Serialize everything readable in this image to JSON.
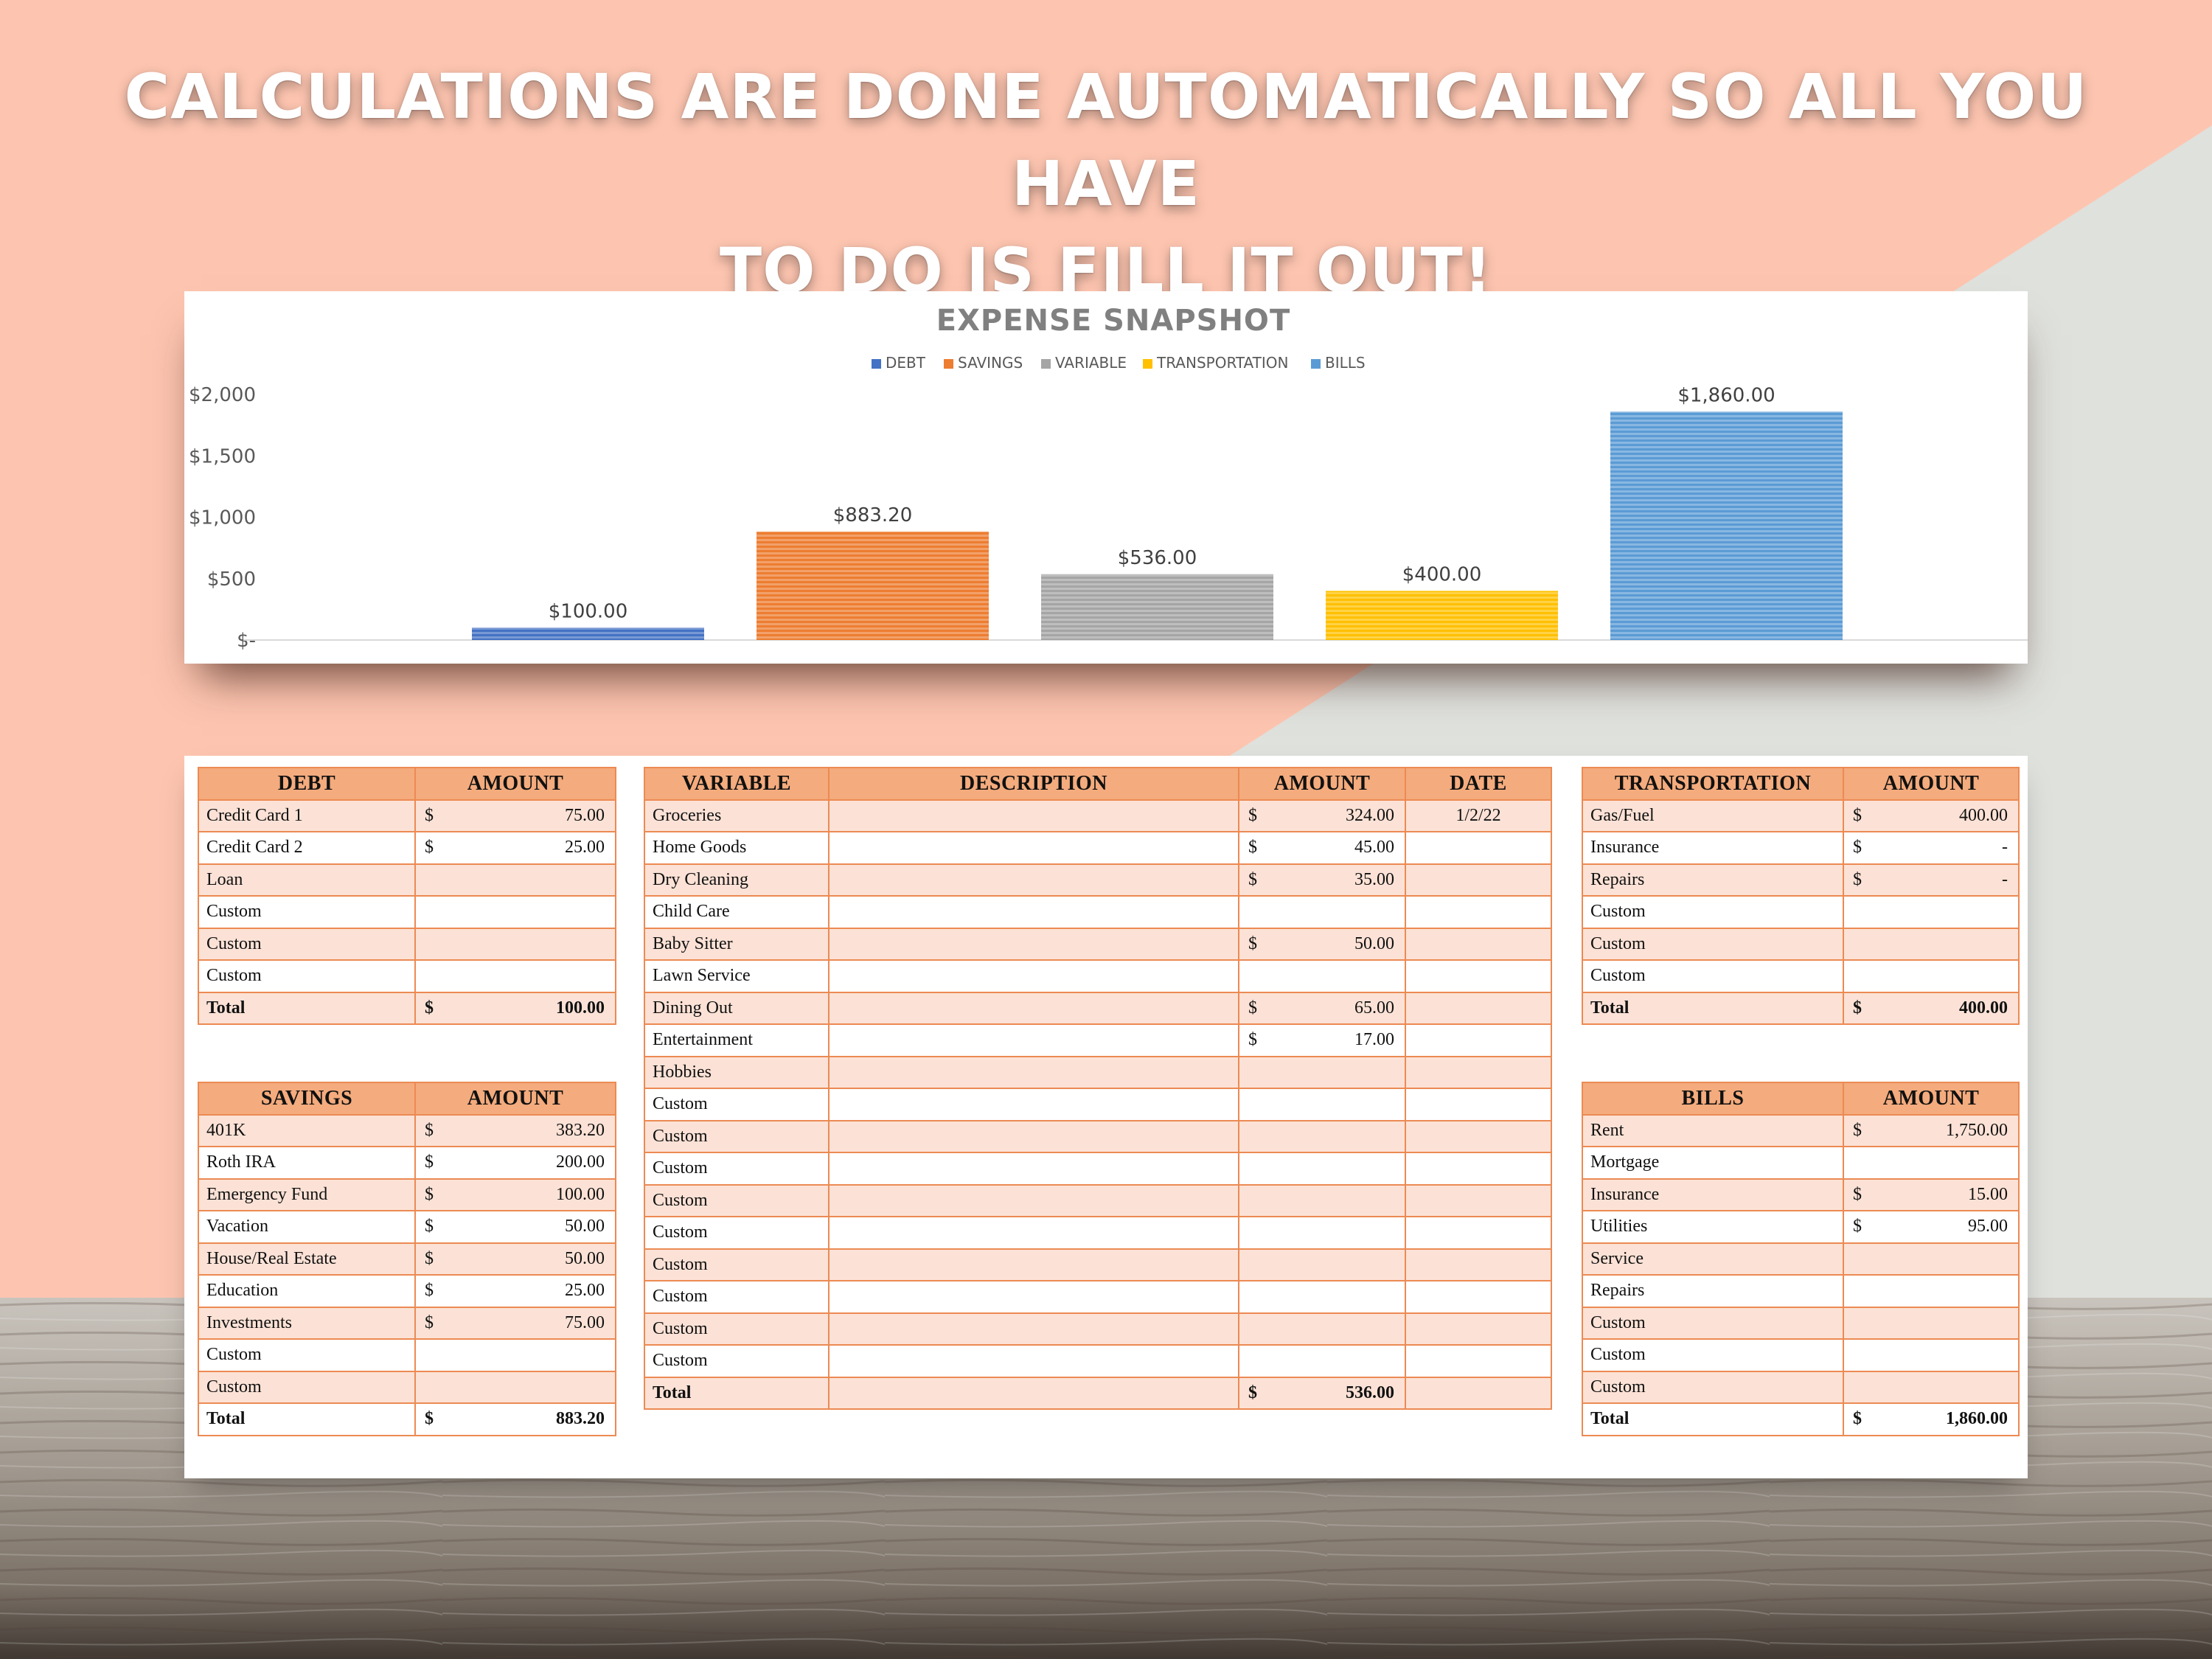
{
  "headline": {
    "line1": "CALCULATIONS ARE DONE AUTOMATICALLY SO ALL YOU HAVE",
    "line2": "TO DO IS FILL IT OUT!"
  },
  "colors": {
    "peach": "#fdc5b0",
    "gray_bg": "#dfe1dd",
    "debt": "#4472c4",
    "savings": "#ed7d31",
    "variable": "#a5a5a5",
    "transportation": "#ffc000",
    "bills": "#5b9bd5",
    "table_header": "#f4ab7d",
    "table_band": "#fce2d6",
    "table_border": "#ec8a53"
  },
  "chart_data": {
    "type": "bar",
    "title": "EXPENSE SNAPSHOT",
    "categories": [
      "DEBT",
      "SAVINGS",
      "VARIABLE",
      "TRANSPORTATION",
      "BILLS"
    ],
    "values": [
      100.0,
      883.2,
      536.0,
      400.0,
      1860.0
    ],
    "data_labels": [
      "$100.00",
      "$883.20",
      "$536.00",
      "$400.00",
      "$1,860.00"
    ],
    "legend": [
      "DEBT",
      "SAVINGS",
      "VARIABLE",
      "TRANSPORTATION",
      "BILLS"
    ],
    "legend_position": "top",
    "ylim": [
      0,
      2000
    ],
    "yticks": [
      0,
      500,
      1000,
      1500,
      2000
    ],
    "ytick_labels": [
      "$-",
      "$500",
      "$1,000",
      "$1,500",
      "$2,000"
    ],
    "xlabel": "",
    "ylabel": ""
  },
  "tables": {
    "debt": {
      "headers": [
        "DEBT",
        "AMOUNT"
      ],
      "rows": [
        [
          "Credit Card 1",
          "$",
          "75.00"
        ],
        [
          "Credit Card 2",
          "$",
          "25.00"
        ],
        [
          "Loan",
          "",
          ""
        ],
        [
          "Custom",
          "",
          ""
        ],
        [
          "Custom",
          "",
          ""
        ],
        [
          "Custom",
          "",
          ""
        ],
        [
          "Total",
          "$",
          "100.00"
        ]
      ]
    },
    "savings": {
      "headers": [
        "SAVINGS",
        "AMOUNT"
      ],
      "rows": [
        [
          "401K",
          "$",
          "383.20"
        ],
        [
          "Roth IRA",
          "$",
          "200.00"
        ],
        [
          "Emergency Fund",
          "$",
          "100.00"
        ],
        [
          "Vacation",
          "$",
          "50.00"
        ],
        [
          "House/Real Estate",
          "$",
          "50.00"
        ],
        [
          "Education",
          "$",
          "25.00"
        ],
        [
          "Investments",
          "$",
          "75.00"
        ],
        [
          "Custom",
          "",
          ""
        ],
        [
          "Custom",
          "",
          ""
        ],
        [
          "Total",
          "$",
          "883.20"
        ]
      ]
    },
    "variable": {
      "headers": [
        "VARIABLE",
        "DESCRIPTION",
        "AMOUNT",
        "DATE"
      ],
      "rows": [
        [
          "Groceries",
          "",
          "$",
          "324.00",
          "1/2/22"
        ],
        [
          "Home Goods",
          "",
          "$",
          "45.00",
          ""
        ],
        [
          "Dry Cleaning",
          "",
          "$",
          "35.00",
          ""
        ],
        [
          "Child Care",
          "",
          "",
          "",
          ""
        ],
        [
          "Baby Sitter",
          "",
          "$",
          "50.00",
          ""
        ],
        [
          "Lawn Service",
          "",
          "",
          "",
          ""
        ],
        [
          "Dining Out",
          "",
          "$",
          "65.00",
          ""
        ],
        [
          "Entertainment",
          "",
          "$",
          "17.00",
          ""
        ],
        [
          "Hobbies",
          "",
          "",
          "",
          ""
        ],
        [
          "Custom",
          "",
          "",
          "",
          ""
        ],
        [
          "Custom",
          "",
          "",
          "",
          ""
        ],
        [
          "Custom",
          "",
          "",
          "",
          ""
        ],
        [
          "Custom",
          "",
          "",
          "",
          ""
        ],
        [
          "Custom",
          "",
          "",
          "",
          ""
        ],
        [
          "Custom",
          "",
          "",
          "",
          ""
        ],
        [
          "Custom",
          "",
          "",
          "",
          ""
        ],
        [
          "Custom",
          "",
          "",
          "",
          ""
        ],
        [
          "Custom",
          "",
          "",
          "",
          ""
        ],
        [
          "Total",
          "",
          "$",
          "536.00",
          ""
        ]
      ]
    },
    "transportation": {
      "headers": [
        "TRANSPORTATION",
        "AMOUNT"
      ],
      "rows": [
        [
          "Gas/Fuel",
          "$",
          "400.00"
        ],
        [
          "Insurance",
          "$",
          "-"
        ],
        [
          "Repairs",
          "$",
          "-"
        ],
        [
          "Custom",
          "",
          ""
        ],
        [
          "Custom",
          "",
          ""
        ],
        [
          "Custom",
          "",
          ""
        ],
        [
          "Total",
          "$",
          "400.00"
        ]
      ]
    },
    "bills": {
      "headers": [
        "BILLS",
        "AMOUNT"
      ],
      "rows": [
        [
          "Rent",
          "$",
          "1,750.00"
        ],
        [
          "Mortgage",
          "",
          ""
        ],
        [
          "Insurance",
          "$",
          "15.00"
        ],
        [
          "Utilities",
          "$",
          "95.00"
        ],
        [
          "Service",
          "",
          ""
        ],
        [
          "Repairs",
          "",
          ""
        ],
        [
          "Custom",
          "",
          ""
        ],
        [
          "Custom",
          "",
          ""
        ],
        [
          "Custom",
          "",
          ""
        ],
        [
          "Total",
          "$",
          "1,860.00"
        ]
      ]
    }
  }
}
